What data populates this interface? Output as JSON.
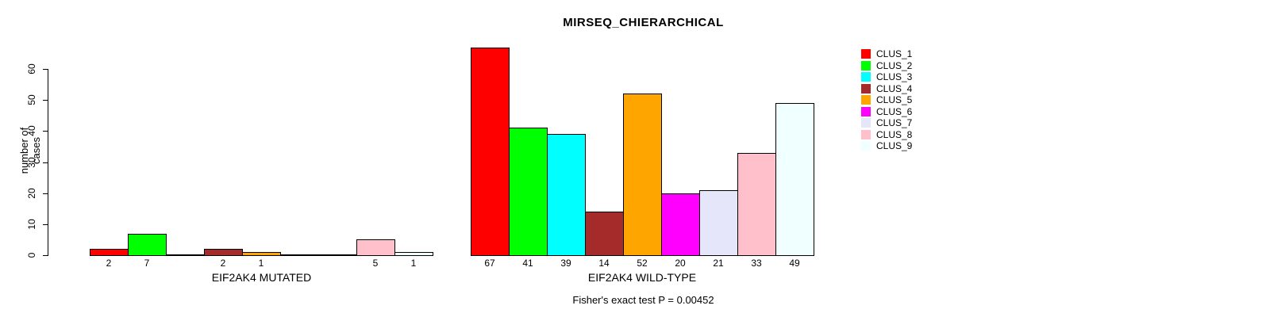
{
  "chart_data": {
    "type": "bar",
    "title": "MIRSEQ_CHIERARCHICAL",
    "ylabel": "number of cases",
    "ylim": [
      0,
      60
    ],
    "yticks": [
      0,
      10,
      20,
      30,
      40,
      50,
      60
    ],
    "grid": false,
    "legend_position": "right",
    "clusters": [
      "CLUS_1",
      "CLUS_2",
      "CLUS_3",
      "CLUS_4",
      "CLUS_5",
      "CLUS_6",
      "CLUS_7",
      "CLUS_8",
      "CLUS_9"
    ],
    "colors": [
      "#FF0000",
      "#00FF00",
      "#00FFFF",
      "#A52A2A",
      "#FFA500",
      "#FF00FF",
      "#E6E6FA",
      "#FFC0CB",
      "#F0FFFF"
    ],
    "groups": [
      {
        "label": "EIF2AK4 MUTATED",
        "values": [
          2,
          7,
          0,
          2,
          1,
          0,
          0,
          5,
          1
        ]
      },
      {
        "label": "EIF2AK4 WILD-TYPE",
        "values": [
          67,
          41,
          39,
          14,
          52,
          20,
          21,
          33,
          49
        ]
      }
    ],
    "annotation": "Fisher's exact test P = 0.00452"
  }
}
